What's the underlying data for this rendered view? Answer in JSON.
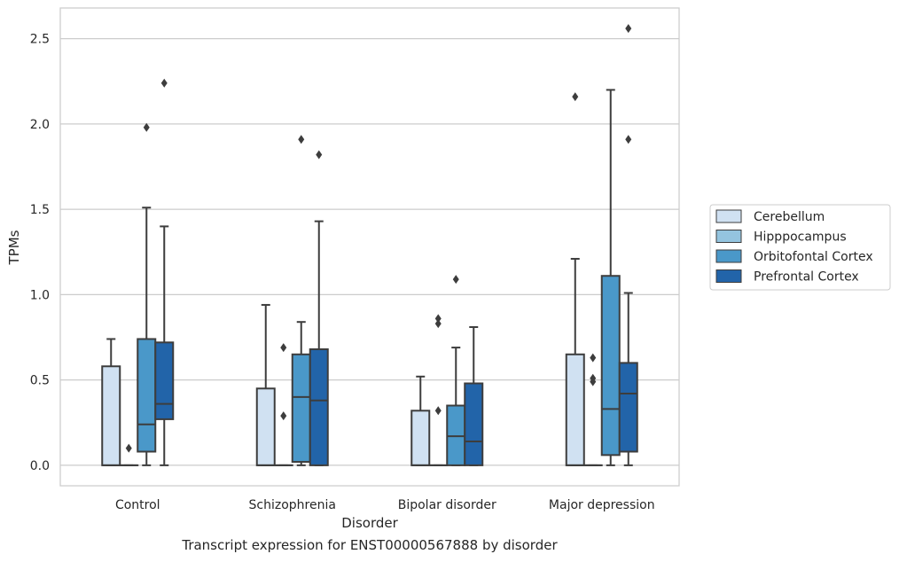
{
  "chart_data": {
    "type": "boxplot",
    "xlabel": "Disorder",
    "ylabel": "TPMs",
    "caption": "Transcript expression for ENST00000567888 by disorder",
    "ylim": [
      -0.12,
      2.68
    ],
    "yticks": [
      0.0,
      0.5,
      1.0,
      1.5,
      2.0,
      2.5
    ],
    "ytick_labels": [
      "0.0",
      "0.5",
      "1.0",
      "1.5",
      "2.0",
      "2.5"
    ],
    "grid": "horizontal",
    "legend_position": "right",
    "categories": [
      "Control",
      "Schizophrenia",
      "Bipolar disorder",
      "Major depression"
    ],
    "series": [
      {
        "name": "Cerebellum",
        "color": "#d0e1f2",
        "boxes": [
          {
            "q1": 0,
            "median": 0,
            "q3": 0.58,
            "whisker_low": 0,
            "whisker_high": 0.74,
            "outliers": []
          },
          {
            "q1": 0,
            "median": 0,
            "q3": 0.45,
            "whisker_low": 0,
            "whisker_high": 0.94,
            "outliers": []
          },
          {
            "q1": 0,
            "median": 0,
            "q3": 0.32,
            "whisker_low": 0,
            "whisker_high": 0.52,
            "outliers": []
          },
          {
            "q1": 0,
            "median": 0,
            "q3": 0.65,
            "whisker_low": 0,
            "whisker_high": 1.21,
            "outliers": [
              2.16
            ]
          }
        ]
      },
      {
        "name": "Hipppocampus",
        "color": "#94c4df",
        "boxes": [
          {
            "q1": 0,
            "median": 0,
            "q3": 0,
            "whisker_low": 0,
            "whisker_high": 0,
            "outliers": [
              0.1
            ]
          },
          {
            "q1": 0,
            "median": 0,
            "q3": 0,
            "whisker_low": 0,
            "whisker_high": 0,
            "outliers": [
              0.29,
              0.69
            ]
          },
          {
            "q1": 0,
            "median": 0,
            "q3": 0,
            "whisker_low": 0,
            "whisker_high": 0,
            "outliers": [
              0.32,
              0.83,
              0.86
            ]
          },
          {
            "q1": 0,
            "median": 0,
            "q3": 0,
            "whisker_low": 0,
            "whisker_high": 0,
            "outliers": [
              0.49,
              0.51,
              0.63
            ]
          }
        ]
      },
      {
        "name": "Orbitofontal Cortex",
        "color": "#4a98c9",
        "boxes": [
          {
            "q1": 0.08,
            "median": 0.24,
            "q3": 0.74,
            "whisker_low": 0,
            "whisker_high": 1.51,
            "outliers": [
              1.98
            ]
          },
          {
            "q1": 0.02,
            "median": 0.4,
            "q3": 0.65,
            "whisker_low": 0,
            "whisker_high": 0.84,
            "outliers": [
              1.91
            ]
          },
          {
            "q1": 0,
            "median": 0.17,
            "q3": 0.35,
            "whisker_low": 0,
            "whisker_high": 0.69,
            "outliers": [
              1.09
            ]
          },
          {
            "q1": 0.06,
            "median": 0.33,
            "q3": 1.11,
            "whisker_low": 0,
            "whisker_high": 2.2,
            "outliers": []
          }
        ]
      },
      {
        "name": "Prefrontal Cortex",
        "color": "#2264a9",
        "boxes": [
          {
            "q1": 0.27,
            "median": 0.36,
            "q3": 0.72,
            "whisker_low": 0,
            "whisker_high": 1.4,
            "outliers": [
              2.24
            ]
          },
          {
            "q1": 0,
            "median": 0.38,
            "q3": 0.68,
            "whisker_low": 0,
            "whisker_high": 1.43,
            "outliers": [
              1.82
            ]
          },
          {
            "q1": 0,
            "median": 0.14,
            "q3": 0.48,
            "whisker_low": 0,
            "whisker_high": 0.81,
            "outliers": []
          },
          {
            "q1": 0.08,
            "median": 0.42,
            "q3": 0.6,
            "whisker_low": 0,
            "whisker_high": 1.01,
            "outliers": [
              1.91,
              2.56
            ]
          }
        ]
      }
    ]
  }
}
